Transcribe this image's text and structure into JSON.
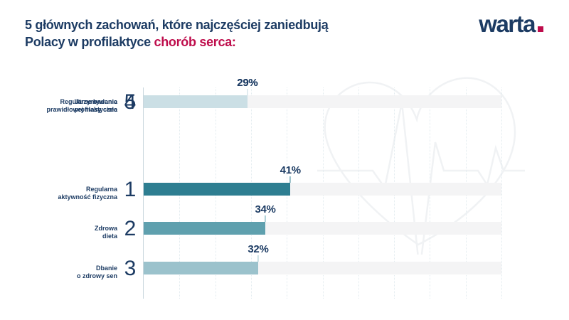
{
  "header": {
    "title_line1": "5 głównych zachowań, które najczęściej zaniedbują",
    "title_line2_prefix": "Polacy w profilaktyce ",
    "title_line2_highlight": "chorób serca:",
    "title_color": "#1C3B63",
    "highlight_color": "#BE0C4B"
  },
  "logo": {
    "text": "warta",
    "dot_color": "#BE0C4B",
    "text_color": "#1C3B63"
  },
  "chart_data": {
    "type": "bar",
    "orientation": "horizontal",
    "unit": "%",
    "xlim": [
      0,
      100
    ],
    "gridline_step_percent": 10,
    "grid": "dotted-vertical",
    "track_color": "#F4F4F5",
    "axis_color": "#C9D7DE",
    "categories": [
      "Regularna aktywność fizyczna",
      "Zdrowa dieta",
      "Dbanie o zdrowy sen",
      "Utrzymywanie prawidłowej masy ciała",
      "Regularne badania profilaktyczne"
    ],
    "values": [
      41,
      34,
      32,
      29,
      29
    ],
    "rows": [
      {
        "rank": "1",
        "label_line1": "Regularna",
        "label_line2": "aktywność fizyczna",
        "value": 41,
        "value_label": "41%",
        "bar_color": "#2E7E91"
      },
      {
        "rank": "2",
        "label_line1": "Zdrowa",
        "label_line2": "dieta",
        "value": 34,
        "value_label": "34%",
        "bar_color": "#5FA0AE"
      },
      {
        "rank": "3",
        "label_line1": "Dbanie",
        "label_line2": "o zdrowy sen",
        "value": 32,
        "value_label": "32%",
        "bar_color": "#9BC2CC"
      },
      {
        "rank": "4",
        "label_line1": "Utrzymywanie",
        "label_line2": "prawidłowej masy ciała",
        "value": 29,
        "value_label": "29%",
        "bar_color": "#C3DAE1"
      },
      {
        "rank": "5",
        "label_line1": "Regularne badania",
        "label_line2": "profilaktyczne",
        "value": 29,
        "value_label": "29%",
        "bar_color": "#CBDFE5"
      }
    ],
    "watermark": "heart-ekg-outline",
    "watermark_color": "#F0F2F4"
  }
}
